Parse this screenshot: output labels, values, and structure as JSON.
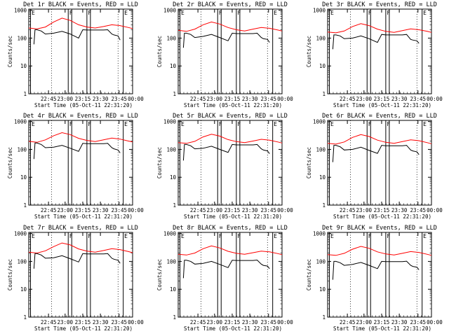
{
  "colors": {
    "events": "#000000",
    "lld": "#ff0000",
    "background": "#ffffff"
  },
  "common": {
    "ylabel": "Counts/sec",
    "xlabel": "Start Time (05-Oct-11 22:31:20)",
    "x_tick_labels": [
      "22:45",
      "23:00",
      "23:15",
      "23:30",
      "23:45",
      "00:00"
    ],
    "y_tick_labels": [
      "1",
      "10",
      "100",
      "1000"
    ],
    "event_markers": [
      "E",
      "F",
      "F",
      "E"
    ]
  },
  "chart_data": [
    {
      "type": "line",
      "title": "Det 1r BLACK = Events, RED = LLD",
      "yscale": "log",
      "ylim": [
        1,
        1100
      ],
      "x_minutes": [
        0,
        15,
        30,
        45,
        60,
        75,
        90,
        105
      ],
      "xlim": [
        0,
        100
      ],
      "grid": "dotted vertical at day boundaries",
      "series": [
        {
          "name": "LLD",
          "color": "red",
          "x": [
            0,
            8,
            16,
            24,
            32,
            40,
            48,
            56,
            64,
            72,
            80,
            88,
            96,
            100
          ],
          "y": [
            230,
            215,
            250,
            380,
            520,
            430,
            300,
            250,
            230,
            260,
            300,
            280,
            240,
            220
          ]
        },
        {
          "name": "Events",
          "color": "black",
          "x": [
            5,
            6,
            8,
            12,
            16,
            24,
            32,
            40,
            48,
            52,
            56,
            64,
            72,
            76,
            80,
            82,
            86,
            88
          ],
          "y": [
            60,
            200,
            200,
            180,
            140,
            150,
            175,
            140,
            100,
            200,
            195,
            195,
            195,
            200,
            140,
            130,
            120,
            85
          ]
        }
      ]
    },
    {
      "type": "line",
      "title": "Det 2r BLACK = Events, RED = LLD",
      "yscale": "log",
      "ylim": [
        1,
        1100
      ],
      "series": [
        {
          "name": "LLD",
          "color": "red",
          "x": [
            0,
            8,
            16,
            24,
            32,
            40,
            48,
            56,
            64,
            72,
            80,
            88,
            96,
            100
          ],
          "y": [
            190,
            175,
            210,
            300,
            380,
            320,
            240,
            200,
            180,
            210,
            240,
            225,
            195,
            180
          ]
        },
        {
          "name": "Events",
          "color": "black",
          "x": [
            5,
            6,
            8,
            12,
            16,
            24,
            32,
            40,
            48,
            52,
            56,
            64,
            72,
            76,
            80,
            82,
            86,
            88
          ],
          "y": [
            45,
            150,
            150,
            135,
            105,
            115,
            135,
            105,
            80,
            150,
            145,
            145,
            145,
            150,
            105,
            95,
            90,
            70
          ]
        }
      ]
    },
    {
      "type": "line",
      "title": "Det 3r BLACK = Events, RED = LLD",
      "yscale": "log",
      "ylim": [
        1,
        1100
      ],
      "series": [
        {
          "name": "LLD",
          "color": "red",
          "x": [
            0,
            8,
            16,
            24,
            32,
            40,
            48,
            56,
            64,
            72,
            80,
            88,
            96,
            100
          ],
          "y": [
            165,
            155,
            180,
            260,
            330,
            280,
            210,
            175,
            160,
            185,
            215,
            200,
            175,
            160
          ]
        },
        {
          "name": "Events",
          "color": "black",
          "x": [
            5,
            6,
            8,
            12,
            16,
            24,
            32,
            40,
            48,
            52,
            56,
            64,
            72,
            76,
            80,
            82,
            86,
            88
          ],
          "y": [
            40,
            130,
            130,
            120,
            95,
            100,
            120,
            95,
            70,
            135,
            130,
            130,
            130,
            135,
            90,
            85,
            80,
            65
          ]
        }
      ]
    },
    {
      "type": "line",
      "title": "Det 4r BLACK = Events, RED = LLD",
      "yscale": "log",
      "ylim": [
        1,
        1100
      ],
      "series": [
        {
          "name": "LLD",
          "color": "red",
          "x": [
            0,
            8,
            16,
            24,
            32,
            40,
            48,
            56,
            64,
            72,
            80,
            88,
            96,
            100
          ],
          "y": [
            195,
            180,
            220,
            310,
            400,
            340,
            250,
            210,
            190,
            220,
            255,
            235,
            200,
            185
          ]
        },
        {
          "name": "Events",
          "color": "black",
          "x": [
            5,
            6,
            8,
            12,
            16,
            24,
            32,
            40,
            48,
            52,
            56,
            64,
            72,
            76,
            80,
            82,
            86,
            88
          ],
          "y": [
            45,
            170,
            170,
            150,
            115,
            120,
            140,
            110,
            85,
            165,
            160,
            160,
            160,
            165,
            115,
            105,
            95,
            75
          ]
        }
      ]
    },
    {
      "type": "line",
      "title": "Det 5r BLACK = Events, RED = LLD",
      "yscale": "log",
      "ylim": [
        1,
        1100
      ],
      "series": [
        {
          "name": "LLD",
          "color": "red",
          "x": [
            0,
            8,
            16,
            24,
            32,
            40,
            48,
            56,
            64,
            72,
            80,
            88,
            96,
            100
          ],
          "y": [
            175,
            165,
            195,
            280,
            350,
            300,
            225,
            190,
            175,
            200,
            230,
            215,
            185,
            170
          ]
        },
        {
          "name": "Events",
          "color": "black",
          "x": [
            5,
            6,
            8,
            12,
            16,
            24,
            32,
            40,
            48,
            52,
            56,
            64,
            72,
            76,
            80,
            82,
            86,
            88
          ],
          "y": [
            40,
            150,
            150,
            135,
            105,
            110,
            130,
            100,
            78,
            150,
            145,
            145,
            145,
            150,
            105,
            95,
            88,
            70
          ]
        }
      ]
    },
    {
      "type": "line",
      "title": "Det 6r BLACK = Events, RED = LLD",
      "yscale": "log",
      "ylim": [
        1,
        1100
      ],
      "series": [
        {
          "name": "LLD",
          "color": "red",
          "x": [
            0,
            8,
            16,
            24,
            32,
            40,
            48,
            56,
            64,
            72,
            80,
            88,
            96,
            100
          ],
          "y": [
            165,
            155,
            185,
            270,
            340,
            290,
            215,
            180,
            165,
            190,
            220,
            205,
            175,
            160
          ]
        },
        {
          "name": "Events",
          "color": "black",
          "x": [
            5,
            6,
            8,
            12,
            16,
            24,
            32,
            40,
            48,
            52,
            56,
            64,
            72,
            76,
            80,
            82,
            86,
            88
          ],
          "y": [
            35,
            140,
            140,
            125,
            95,
            100,
            120,
            92,
            72,
            140,
            135,
            135,
            135,
            140,
            95,
            88,
            82,
            65
          ]
        }
      ]
    },
    {
      "type": "line",
      "title": "Det 7r BLACK = Events, RED = LLD",
      "yscale": "log",
      "ylim": [
        1,
        1100
      ],
      "series": [
        {
          "name": "LLD",
          "color": "red",
          "x": [
            0,
            8,
            16,
            24,
            32,
            40,
            48,
            56,
            64,
            72,
            80,
            88,
            96,
            100
          ],
          "y": [
            215,
            200,
            240,
            340,
            460,
            390,
            280,
            235,
            215,
            245,
            285,
            265,
            225,
            205
          ]
        },
        {
          "name": "Events",
          "color": "black",
          "x": [
            5,
            6,
            8,
            12,
            16,
            24,
            32,
            40,
            48,
            52,
            56,
            64,
            72,
            76,
            80,
            82,
            86,
            88
          ],
          "y": [
            55,
            190,
            190,
            170,
            130,
            135,
            160,
            125,
            95,
            190,
            185,
            185,
            185,
            190,
            130,
            120,
            110,
            85
          ]
        }
      ]
    },
    {
      "type": "line",
      "title": "Det 8r BLACK = Events, RED = LLD",
      "yscale": "log",
      "ylim": [
        1,
        1100
      ],
      "series": [
        {
          "name": "LLD",
          "color": "red",
          "x": [
            0,
            8,
            16,
            24,
            32,
            40,
            48,
            56,
            64,
            72,
            80,
            88,
            96,
            100
          ],
          "y": [
            180,
            170,
            200,
            285,
            360,
            305,
            230,
            195,
            180,
            205,
            235,
            220,
            190,
            175
          ]
        },
        {
          "name": "Events",
          "color": "black",
          "x": [
            5,
            6,
            8,
            12,
            16,
            24,
            32,
            40,
            48,
            52,
            56,
            64,
            72,
            76,
            80,
            82,
            86,
            88
          ],
          "y": [
            25,
            110,
            110,
            100,
            80,
            85,
            100,
            78,
            60,
            110,
            108,
            108,
            108,
            112,
            80,
            72,
            68,
            55
          ]
        }
      ]
    },
    {
      "type": "line",
      "title": "Det 9r BLACK = Events, RED = LLD",
      "yscale": "log",
      "ylim": [
        1,
        1100
      ],
      "series": [
        {
          "name": "LLD",
          "color": "red",
          "x": [
            0,
            8,
            16,
            24,
            32,
            40,
            48,
            56,
            64,
            72,
            80,
            88,
            96,
            100
          ],
          "y": [
            175,
            165,
            195,
            275,
            345,
            295,
            220,
            185,
            170,
            195,
            225,
            210,
            180,
            165
          ]
        },
        {
          "name": "Events",
          "color": "black",
          "x": [
            5,
            6,
            8,
            12,
            16,
            24,
            32,
            40,
            48,
            52,
            56,
            64,
            72,
            76,
            80,
            82,
            86,
            88
          ],
          "y": [
            22,
            100,
            100,
            90,
            72,
            78,
            92,
            72,
            55,
            100,
            98,
            98,
            98,
            102,
            72,
            66,
            62,
            50
          ]
        }
      ]
    }
  ]
}
